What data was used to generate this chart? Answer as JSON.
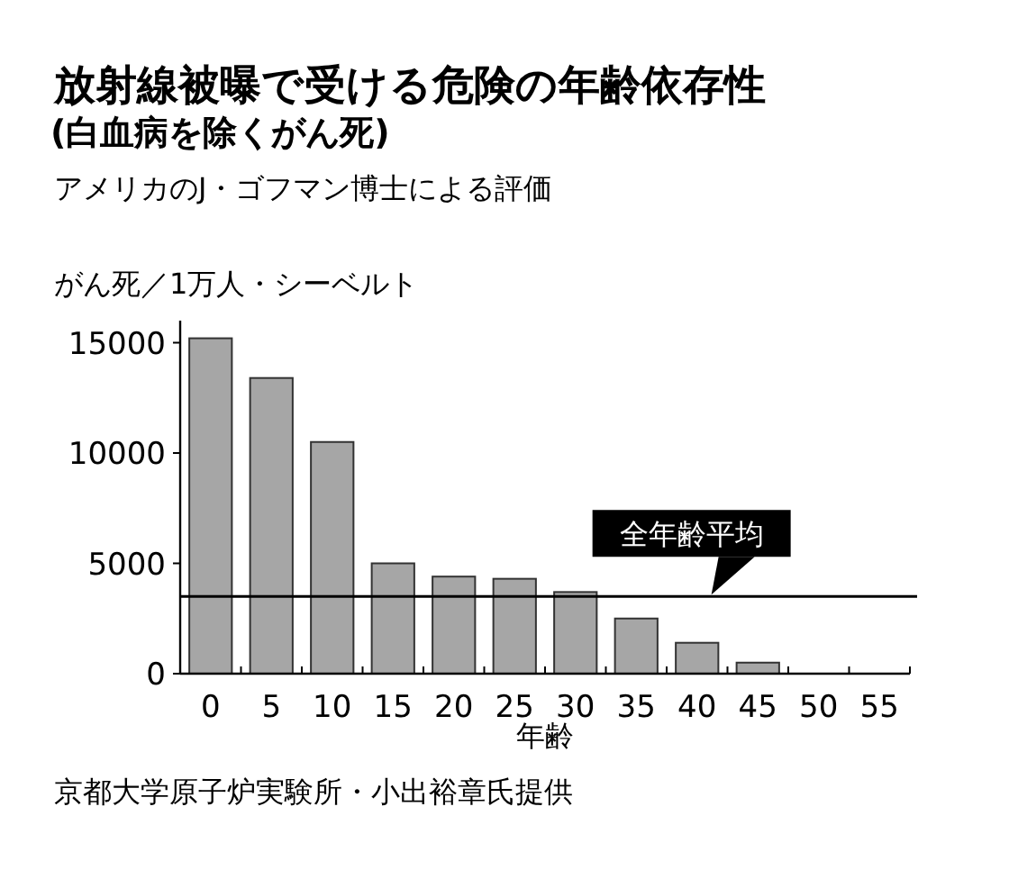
{
  "chart_data": {
    "type": "bar",
    "title": "放射線被曝で受ける危険の年齢依存性",
    "subtitle": "(白血病を除くがん死)",
    "xlabel": "年齢",
    "ylabel": "がん死／1万人・シーベルト",
    "annotations": [
      "アメリカのJ・ゴフマン博士による評価",
      "京都大学原子炉実験所・小出裕章氏提供"
    ],
    "categories": [
      "0",
      "5",
      "10",
      "15",
      "20",
      "25",
      "30",
      "35",
      "40",
      "45",
      "50",
      "55"
    ],
    "values": [
      15200,
      13400,
      10500,
      5000,
      4400,
      4300,
      3700,
      2500,
      1400,
      500,
      0,
      0
    ],
    "color": "#a6a6a6",
    "ylim": [
      0,
      16000
    ],
    "yticks": [
      0,
      5000,
      10000,
      15000
    ],
    "ref_lines": [
      {
        "axis": "y",
        "value": 3500,
        "label": "全年齢平均"
      }
    ]
  }
}
